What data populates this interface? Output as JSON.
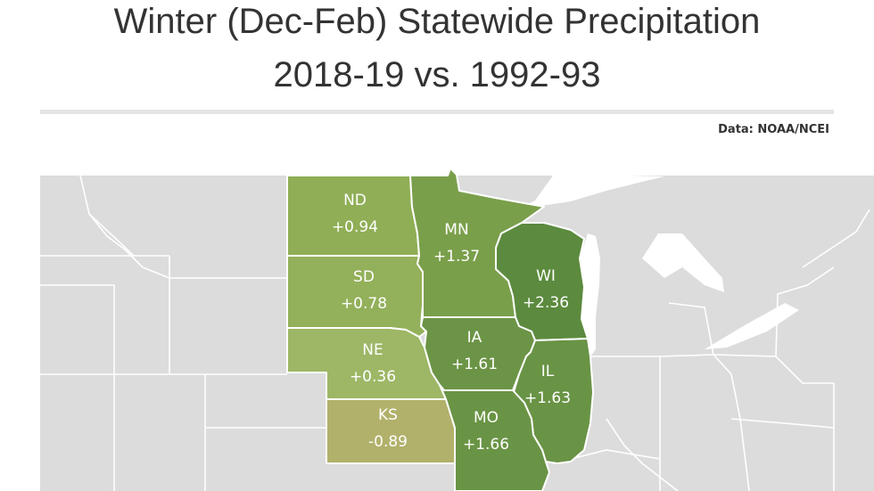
{
  "header": {
    "title_line1": "Winter (Dec-Feb) Statewide Precipitation",
    "title_line2": "2018-19 vs. 1992-93",
    "source": "Data: NOAA/NCEI"
  },
  "map": {
    "background_color": "#dcdcdc",
    "border_color": "#ffffff",
    "states": [
      {
        "id": "nd",
        "abbr": "ND",
        "value": "+0.94",
        "fill": "#8fae55"
      },
      {
        "id": "sd",
        "abbr": "SD",
        "value": "+0.78",
        "fill": "#93b05a"
      },
      {
        "id": "ne",
        "abbr": "NE",
        "value": "+0.36",
        "fill": "#9db766"
      },
      {
        "id": "ks",
        "abbr": "KS",
        "value": "-0.89",
        "fill": "#b1b16b"
      },
      {
        "id": "mn",
        "abbr": "MN",
        "value": "+1.37",
        "fill": "#7a9f4b"
      },
      {
        "id": "wi",
        "abbr": "WI",
        "value": "+2.36",
        "fill": "#5c8a3e"
      },
      {
        "id": "ia",
        "abbr": "IA",
        "value": "+1.61",
        "fill": "#6c9446"
      },
      {
        "id": "il",
        "abbr": "IL",
        "value": "+1.63",
        "fill": "#699345"
      },
      {
        "id": "mo",
        "abbr": "MO",
        "value": "+1.66",
        "fill": "#6a9445"
      }
    ]
  }
}
